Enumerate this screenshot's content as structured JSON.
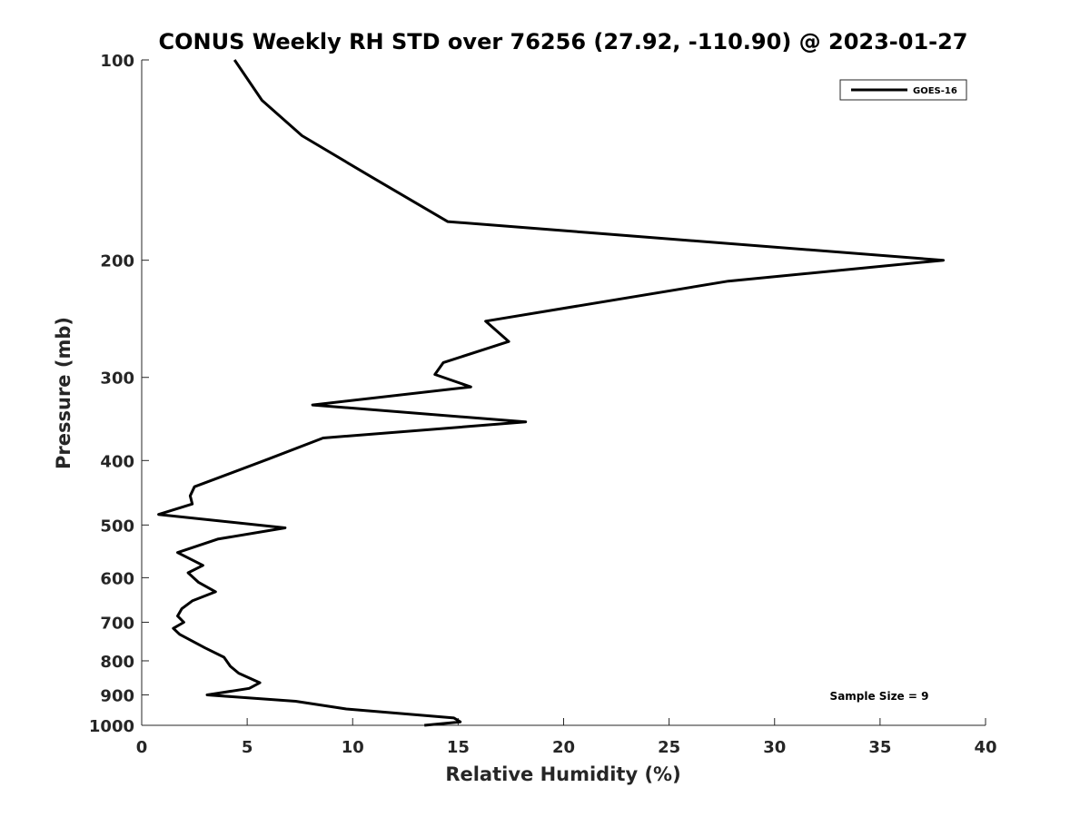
{
  "chart_data": {
    "type": "line",
    "title": "CONUS Weekly RH STD over 76256 (27.92, -110.90) @ 2023-01-27",
    "xlabel": "Relative Humidity (%)",
    "ylabel": "Pressure (mb)",
    "xlim": [
      0,
      40
    ],
    "ylim": [
      100,
      1000
    ],
    "y_scale": "log",
    "y_reversed": true,
    "x_ticks": [
      0,
      5,
      10,
      15,
      20,
      25,
      30,
      35,
      40
    ],
    "y_ticks": [
      100,
      200,
      300,
      400,
      500,
      600,
      700,
      800,
      900,
      1000
    ],
    "grid": false,
    "legend_position": "top-right",
    "line_color": "#000000",
    "series": [
      {
        "name": "GOES-16",
        "points": [
          [
            4.4,
            100
          ],
          [
            5.7,
            115
          ],
          [
            7.6,
            130
          ],
          [
            10.9,
            150
          ],
          [
            14.5,
            175
          ],
          [
            38.0,
            200
          ],
          [
            27.8,
            215
          ],
          [
            16.3,
            247
          ],
          [
            17.4,
            265
          ],
          [
            14.3,
            285
          ],
          [
            13.9,
            297
          ],
          [
            15.6,
            310
          ],
          [
            8.1,
            330
          ],
          [
            18.2,
            350
          ],
          [
            8.6,
            370
          ],
          [
            6.0,
            398
          ],
          [
            2.5,
            438
          ],
          [
            2.3,
            452
          ],
          [
            2.4,
            465
          ],
          [
            0.8,
            482
          ],
          [
            6.8,
            505
          ],
          [
            3.6,
            525
          ],
          [
            1.7,
            550
          ],
          [
            2.9,
            575
          ],
          [
            2.2,
            590
          ],
          [
            2.7,
            610
          ],
          [
            3.5,
            630
          ],
          [
            2.4,
            650
          ],
          [
            1.9,
            668
          ],
          [
            1.7,
            685
          ],
          [
            2.0,
            700
          ],
          [
            1.5,
            715
          ],
          [
            1.8,
            730
          ],
          [
            3.0,
            765
          ],
          [
            3.9,
            790
          ],
          [
            4.2,
            815
          ],
          [
            4.6,
            835
          ],
          [
            5.6,
            863
          ],
          [
            5.1,
            880
          ],
          [
            3.1,
            900
          ],
          [
            7.3,
            920
          ],
          [
            9.7,
            945
          ],
          [
            14.8,
            975
          ],
          [
            15.1,
            988
          ],
          [
            13.4,
            1000
          ]
        ]
      }
    ],
    "annotation": "Sample Size = 9"
  }
}
